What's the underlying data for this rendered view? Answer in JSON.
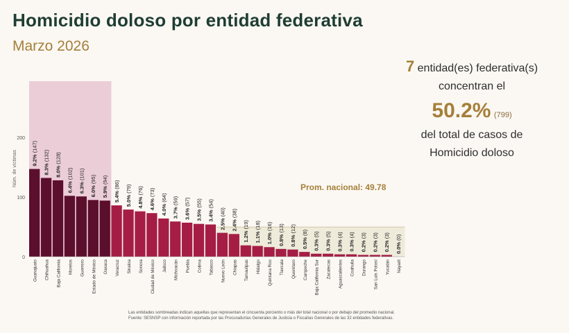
{
  "header": {
    "title": "Homicidio doloso por entidad federativa",
    "subtitle": "Marzo 2026"
  },
  "summary": {
    "count": "7",
    "line1": "entidad(es) federativa(s)",
    "line2": "concentran el",
    "pct": "50.2%",
    "cases": "(799)",
    "line3": "del total de casos de",
    "line4": "Homicidio doloso"
  },
  "footnote": {
    "line1": "Las entidades sombreadas indican aquellas que representan el cincuenta porciento o más del total nacional o por debajo del promedio nacional.",
    "line2": "Fuente: SESNSP con información reportada por las Procuradurías Generales de Justicia o Fiscalías Generales de las 32 entidades federativas."
  },
  "colors": {
    "dark_bar": "#5c0f2c",
    "bar": "#a51d45",
    "top_shade": "#e8c6d2",
    "low_shade": "#ece9d7",
    "avg_label": "#a57f3a"
  },
  "chart_data": {
    "type": "bar",
    "ylabel": "Núm. de víctimas",
    "yticks": [
      0,
      100,
      200
    ],
    "ylim": [
      0,
      250
    ],
    "average_label": "Prom. nacional: 49.78",
    "average": 49.78,
    "top_group_count": 7,
    "categories": [
      "Guanajuato",
      "Chihuahua",
      "Baja California",
      "Morelos",
      "Guerrero",
      "Estado de México",
      "Oaxaca",
      "Veracruz",
      "Sinaloa",
      "Sonora",
      "Ciudad de México",
      "Jalisco",
      "Michoacán",
      "Puebla",
      "Colima",
      "Tabasco",
      "Nuevo León",
      "Chiapas",
      "Tamaulipas",
      "Hidalgo",
      "Quintana Roo",
      "Tlaxcala",
      "Querétaro",
      "Campeche",
      "Baja California Sur",
      "Zacatecas",
      "Aguascalientes",
      "Coahuila",
      "Durango",
      "San Luis Potosí",
      "Yucatán",
      "Nayarit"
    ],
    "values": [
      147,
      132,
      128,
      102,
      101,
      95,
      94,
      86,
      79,
      76,
      73,
      64,
      59,
      57,
      55,
      54,
      40,
      38,
      19,
      18,
      16,
      13,
      12,
      8,
      5,
      5,
      4,
      4,
      3,
      3,
      3,
      0
    ],
    "labels": [
      "9.2% (147)",
      "8.3% (132)",
      "8.0% (128)",
      "6.4% (102)",
      "6.3% (101)",
      "6.0% (95)",
      "5.9% (94)",
      "5.4% (86)",
      "5.0% (79)",
      "4.8% (76)",
      "4.6% (73)",
      "4.0% (64)",
      "3.7% (59)",
      "3.6% (57)",
      "3.5% (55)",
      "3.4% (54)",
      "2.5% (40)",
      "2.4% (38)",
      "1.2% (19)",
      "1.1% (18)",
      "1.0% (16)",
      "0.8% (13)",
      "0.8% (12)",
      "0.5% (8)",
      "0.3% (5)",
      "0.3% (5)",
      "0.3% (4)",
      "0.3% (4)",
      "0.2% (3)",
      "0.2% (3)",
      "0.2% (3)",
      "0.0% (0)"
    ]
  }
}
